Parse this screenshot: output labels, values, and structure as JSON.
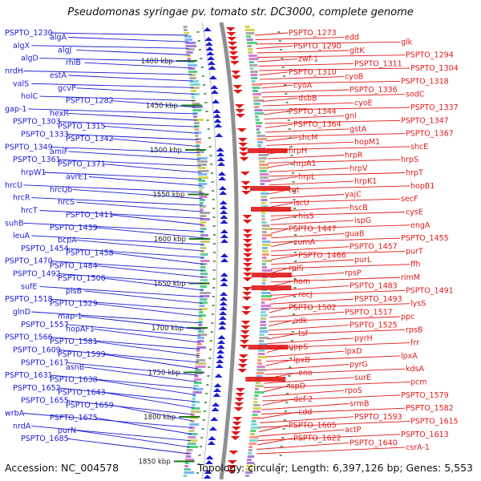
{
  "title": "Pseudomonas syringae pv. tomato str. DC3000, complete genome",
  "footer": {
    "accession": "Accession: NC_004578",
    "stats": "Topology: circular; Length: 6,397,126 bp; Genes: 5,553"
  },
  "colors": {
    "left_genes": "#1a1ad6",
    "right_genes": "#e01818",
    "backbone": "#888888",
    "scale_marks": "#1a7a1a"
  },
  "kbp_marks": [
    "1400 kbp",
    "1450 kbp",
    "1500 kbp",
    "1550 kbp",
    "1600 kbp",
    "1650 kbp",
    "1700 kbp",
    "1750 kbp",
    "1800 kbp",
    "1850 kbp"
  ],
  "left_labels": [
    "PSPTO_1230",
    "algA",
    "algX",
    "algJ",
    "algD",
    "rhlB",
    "nrdH",
    "estA",
    "valS",
    "gcvP",
    "holC",
    "PSPTO_1282",
    "gap-1",
    "hexR",
    "PSPTO_1303",
    "PSPTO_1315",
    "PSPTO_1333",
    "PSPTO_1342",
    "PSPTO_1349",
    "amiF",
    "PSPTO_1361",
    "PSPTO_1371",
    "hrpW1",
    "avrE1",
    "hrcU",
    "hrcQb",
    "hrcR",
    "hrcS",
    "hrcT",
    "PSPTO_1411",
    "suhB",
    "PSPTO_1439",
    "leuA",
    "bcpA",
    "PSPTO_1454",
    "PSPTO_1458",
    "PSPTO_1470",
    "PSPTO_1484",
    "PSPTO_1492",
    "PSPTO_1506",
    "sufE",
    "plsB",
    "PSPTO_1518",
    "PSPTO_1529",
    "glnD",
    "map-1",
    "PSPTO_1557",
    "hopAF1",
    "PSPTO_1566",
    "PSPTO_1581",
    "PSPTO_1609",
    "PSPTO_1599",
    "PSPTO_1617",
    "asnB",
    "PSPTO_1631",
    "PSPTO_1638",
    "PSPTO_1652",
    "PSPTO_1643",
    "PSPTO_1655",
    "PSPTO_1659",
    "wrbA",
    "PSPTO_1675",
    "nrdA",
    "purN",
    "PSPTO_1685"
  ],
  "right_labels": [
    "PSPTO_1273",
    "edd",
    "glk",
    "PSPTO_1290",
    "gltK",
    "PSPTO_1294",
    "zwf-1",
    "PSPTO_1311",
    "PSPTO_1304",
    "PSPTO_1310",
    "cyoB",
    "PSPTO_1318",
    "cyoA",
    "PSPTO_1336",
    "sodC",
    "dsbB",
    "cyoE",
    "PSPTO_1337",
    "PSPTO_1344",
    "gnl",
    "PSPTO_1347",
    "PSPTO_1364",
    "gstA",
    "PSPTO_1367",
    "shcM",
    "hopM1",
    "shcE",
    "hrpH",
    "hrpR",
    "hrpS",
    "hrpA1",
    "hrpV",
    "hrpT",
    "hrpL",
    "hrpK1",
    "hopB1",
    "tgt",
    "yajC",
    "secF",
    "iscU",
    "hscB",
    "cysE",
    "hisS",
    "ispG",
    "engA",
    "PSPTO_1447",
    "guaB",
    "PSPTO_1455",
    "cumA",
    "PSPTO_1457",
    "purT",
    "PSPTO_1466",
    "purL",
    "ffh",
    "rplS",
    "rpsP",
    "rimM",
    "hom",
    "PSPTO_1483",
    "PSPTO_1491",
    "recJ",
    "PSPTO_1493",
    "lysS",
    "PSPTO_1502",
    "PSPTO_1517",
    "ppc",
    "adk",
    "PSPTO_1525",
    "rpsB",
    "tsf",
    "pyrH",
    "frr",
    "uppS",
    "lpxD",
    "lpxA",
    "lpxB",
    "pyrG",
    "kdsA",
    "eno",
    "surE",
    "pcm",
    "ispD",
    "rpoS",
    "PSPTO_1579",
    "def-2",
    "srmB",
    "PSPTO_1582",
    "cdd",
    "PSPTO_1593",
    "PSPTO_1615",
    "PSPTO_1605",
    "actP",
    "PSPTO_1613",
    "PSPTO_1622",
    "PSPTO_1640",
    "csrA-1"
  ]
}
